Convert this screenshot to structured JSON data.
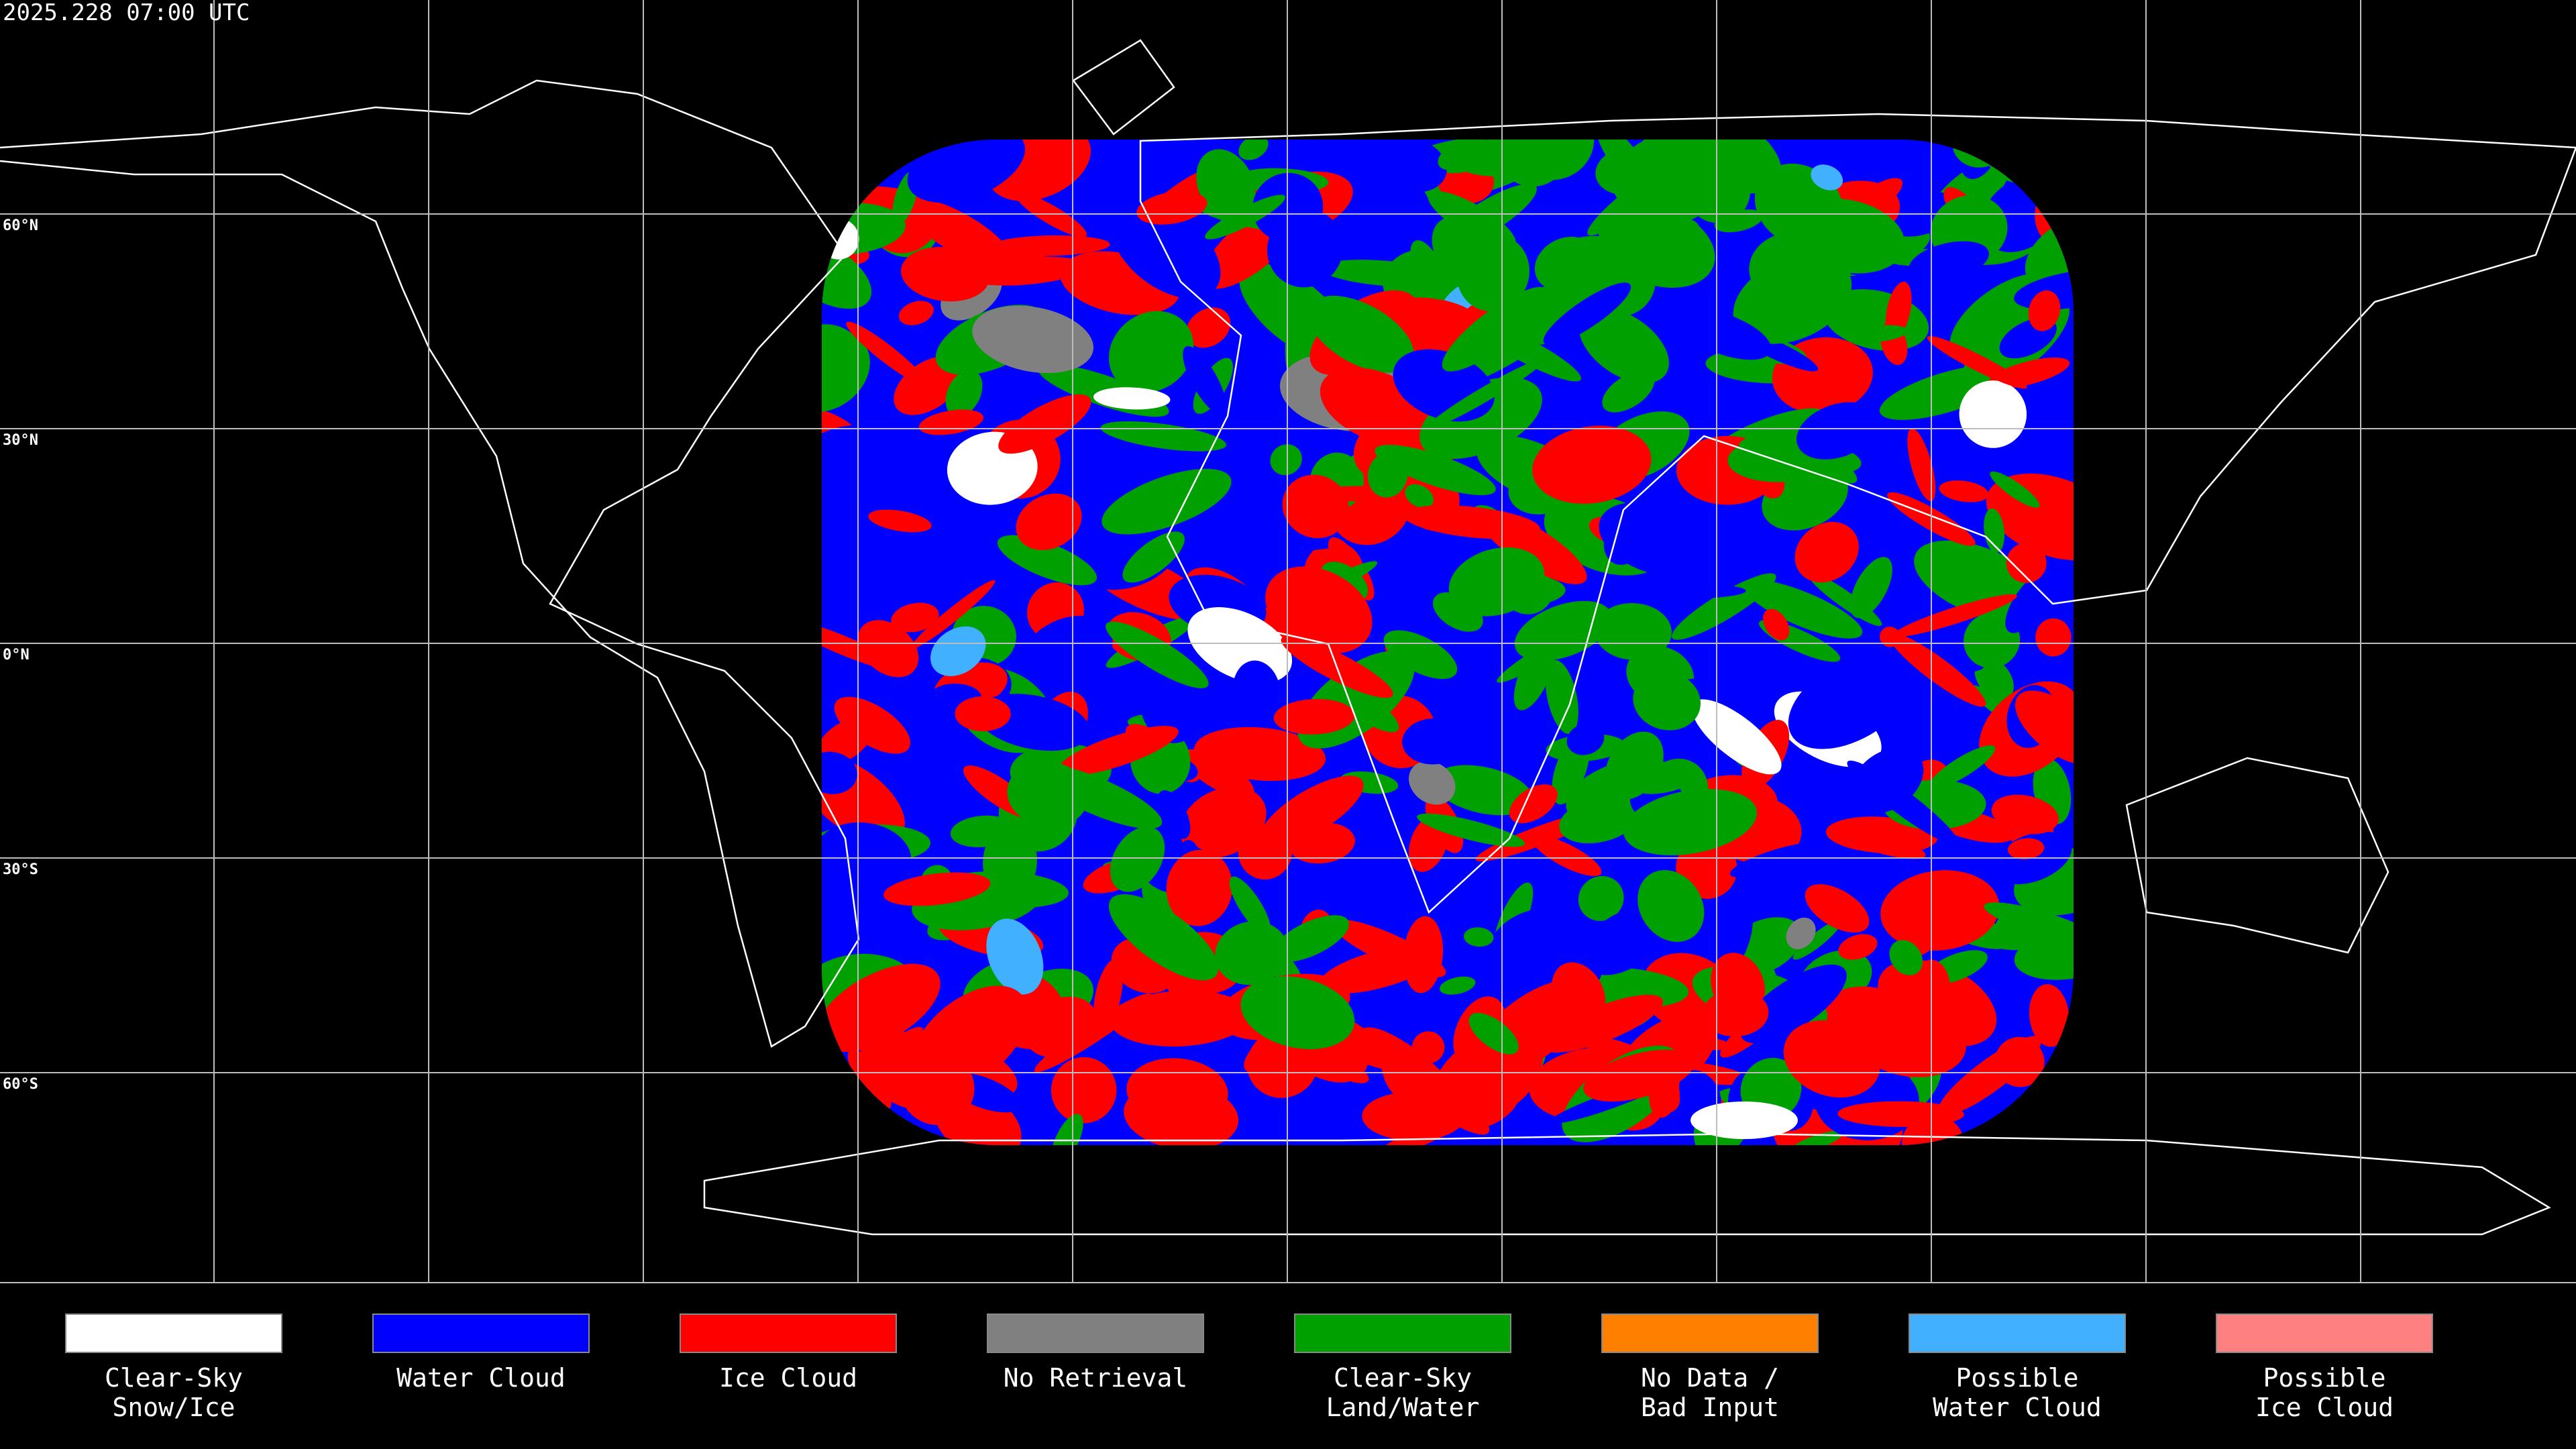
{
  "header": {
    "timestamp": "2025.228 07:00 UTC"
  },
  "map": {
    "latitude_labels": [
      "60°N",
      "30°N",
      "0°N",
      "30°S",
      "60°S"
    ]
  },
  "legend": {
    "items": [
      {
        "label": [
          "Clear-Sky",
          "Snow/Ice"
        ],
        "color": "#ffffff"
      },
      {
        "label": [
          "Water Cloud"
        ],
        "color": "#0000ff"
      },
      {
        "label": [
          "Ice Cloud"
        ],
        "color": "#ff0000"
      },
      {
        "label": [
          "No Retrieval"
        ],
        "color": "#808080"
      },
      {
        "label": [
          "Clear-Sky",
          "Land/Water"
        ],
        "color": "#00a000"
      },
      {
        "label": [
          "No Data /",
          "Bad Input"
        ],
        "color": "#ff8000"
      },
      {
        "label": [
          "Possible",
          "Water Cloud"
        ],
        "color": "#40b0ff"
      },
      {
        "label": [
          "Possible",
          "Ice Cloud"
        ],
        "color": "#ff8080"
      }
    ]
  }
}
